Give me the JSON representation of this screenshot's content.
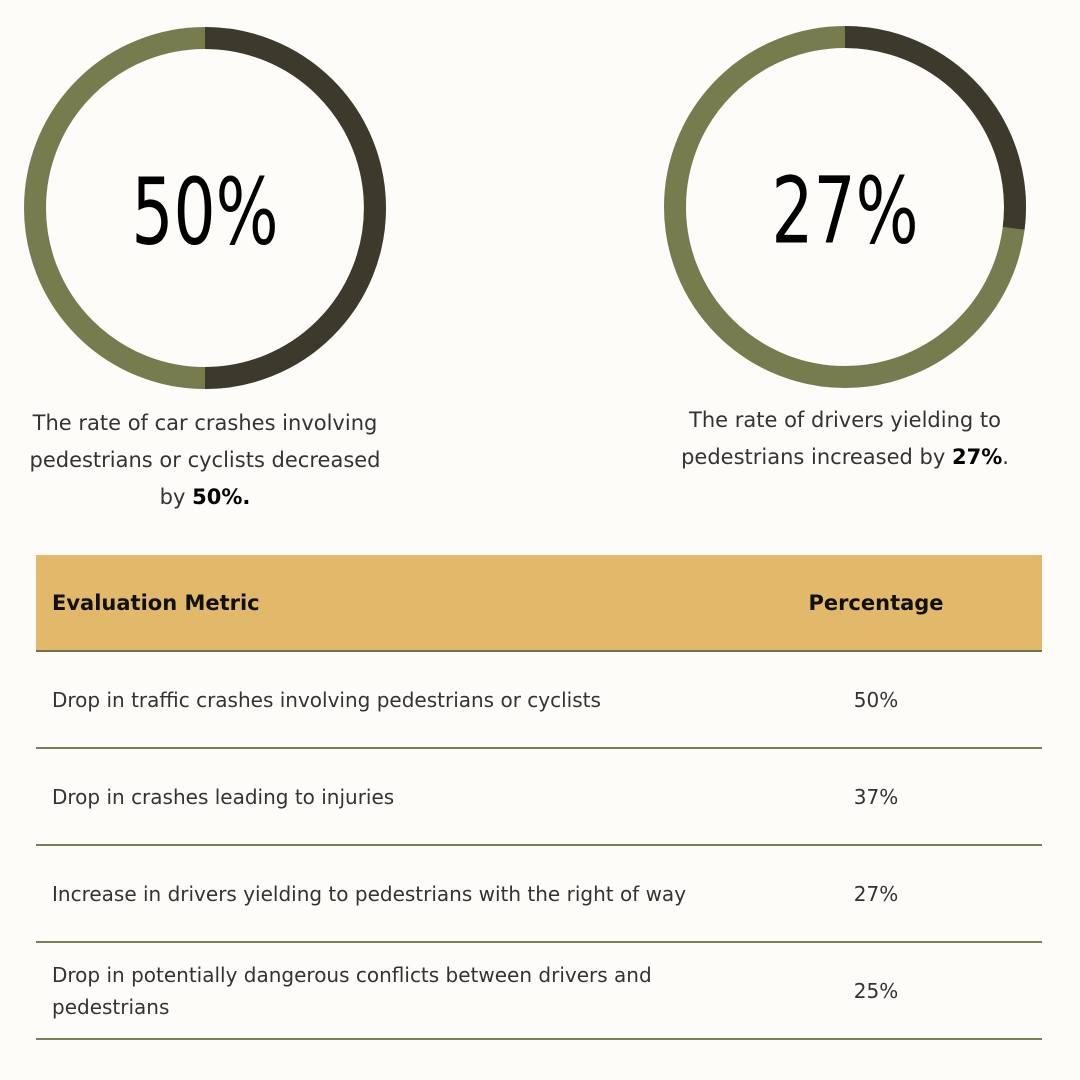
{
  "chart_data": [
    {
      "type": "donut",
      "values": [
        50
      ],
      "value_labels": [
        "50%"
      ],
      "color": "#3d3a2b",
      "track_color": "#777c4e",
      "caption": {
        "text": "The rate of car crashes involving pedestrians or cyclists decreased by",
        "bold": "50%."
      }
    },
    {
      "type": "donut",
      "values": [
        27
      ],
      "value_labels": [
        "27%"
      ],
      "color": "#3d3a2b",
      "track_color": "#777c4e",
      "caption": {
        "text": "The rate of drivers yielding to pedestrians increased by",
        "bold": "27%",
        "after": "."
      }
    }
  ],
  "table": {
    "header": [
      "Evaluation Metric",
      "Percentage"
    ],
    "rows": [
      [
        "Drop in traffic crashes involving pedestrians or cyclists",
        "50%"
      ],
      [
        "Drop in crashes leading to injuries",
        "37%"
      ],
      [
        "Increase in drivers yielding to pedestrians with the right of way",
        "27%"
      ],
      [
        "Drop in potentially dangerous conflicts between drivers and pedestrians",
        "25%"
      ]
    ]
  }
}
